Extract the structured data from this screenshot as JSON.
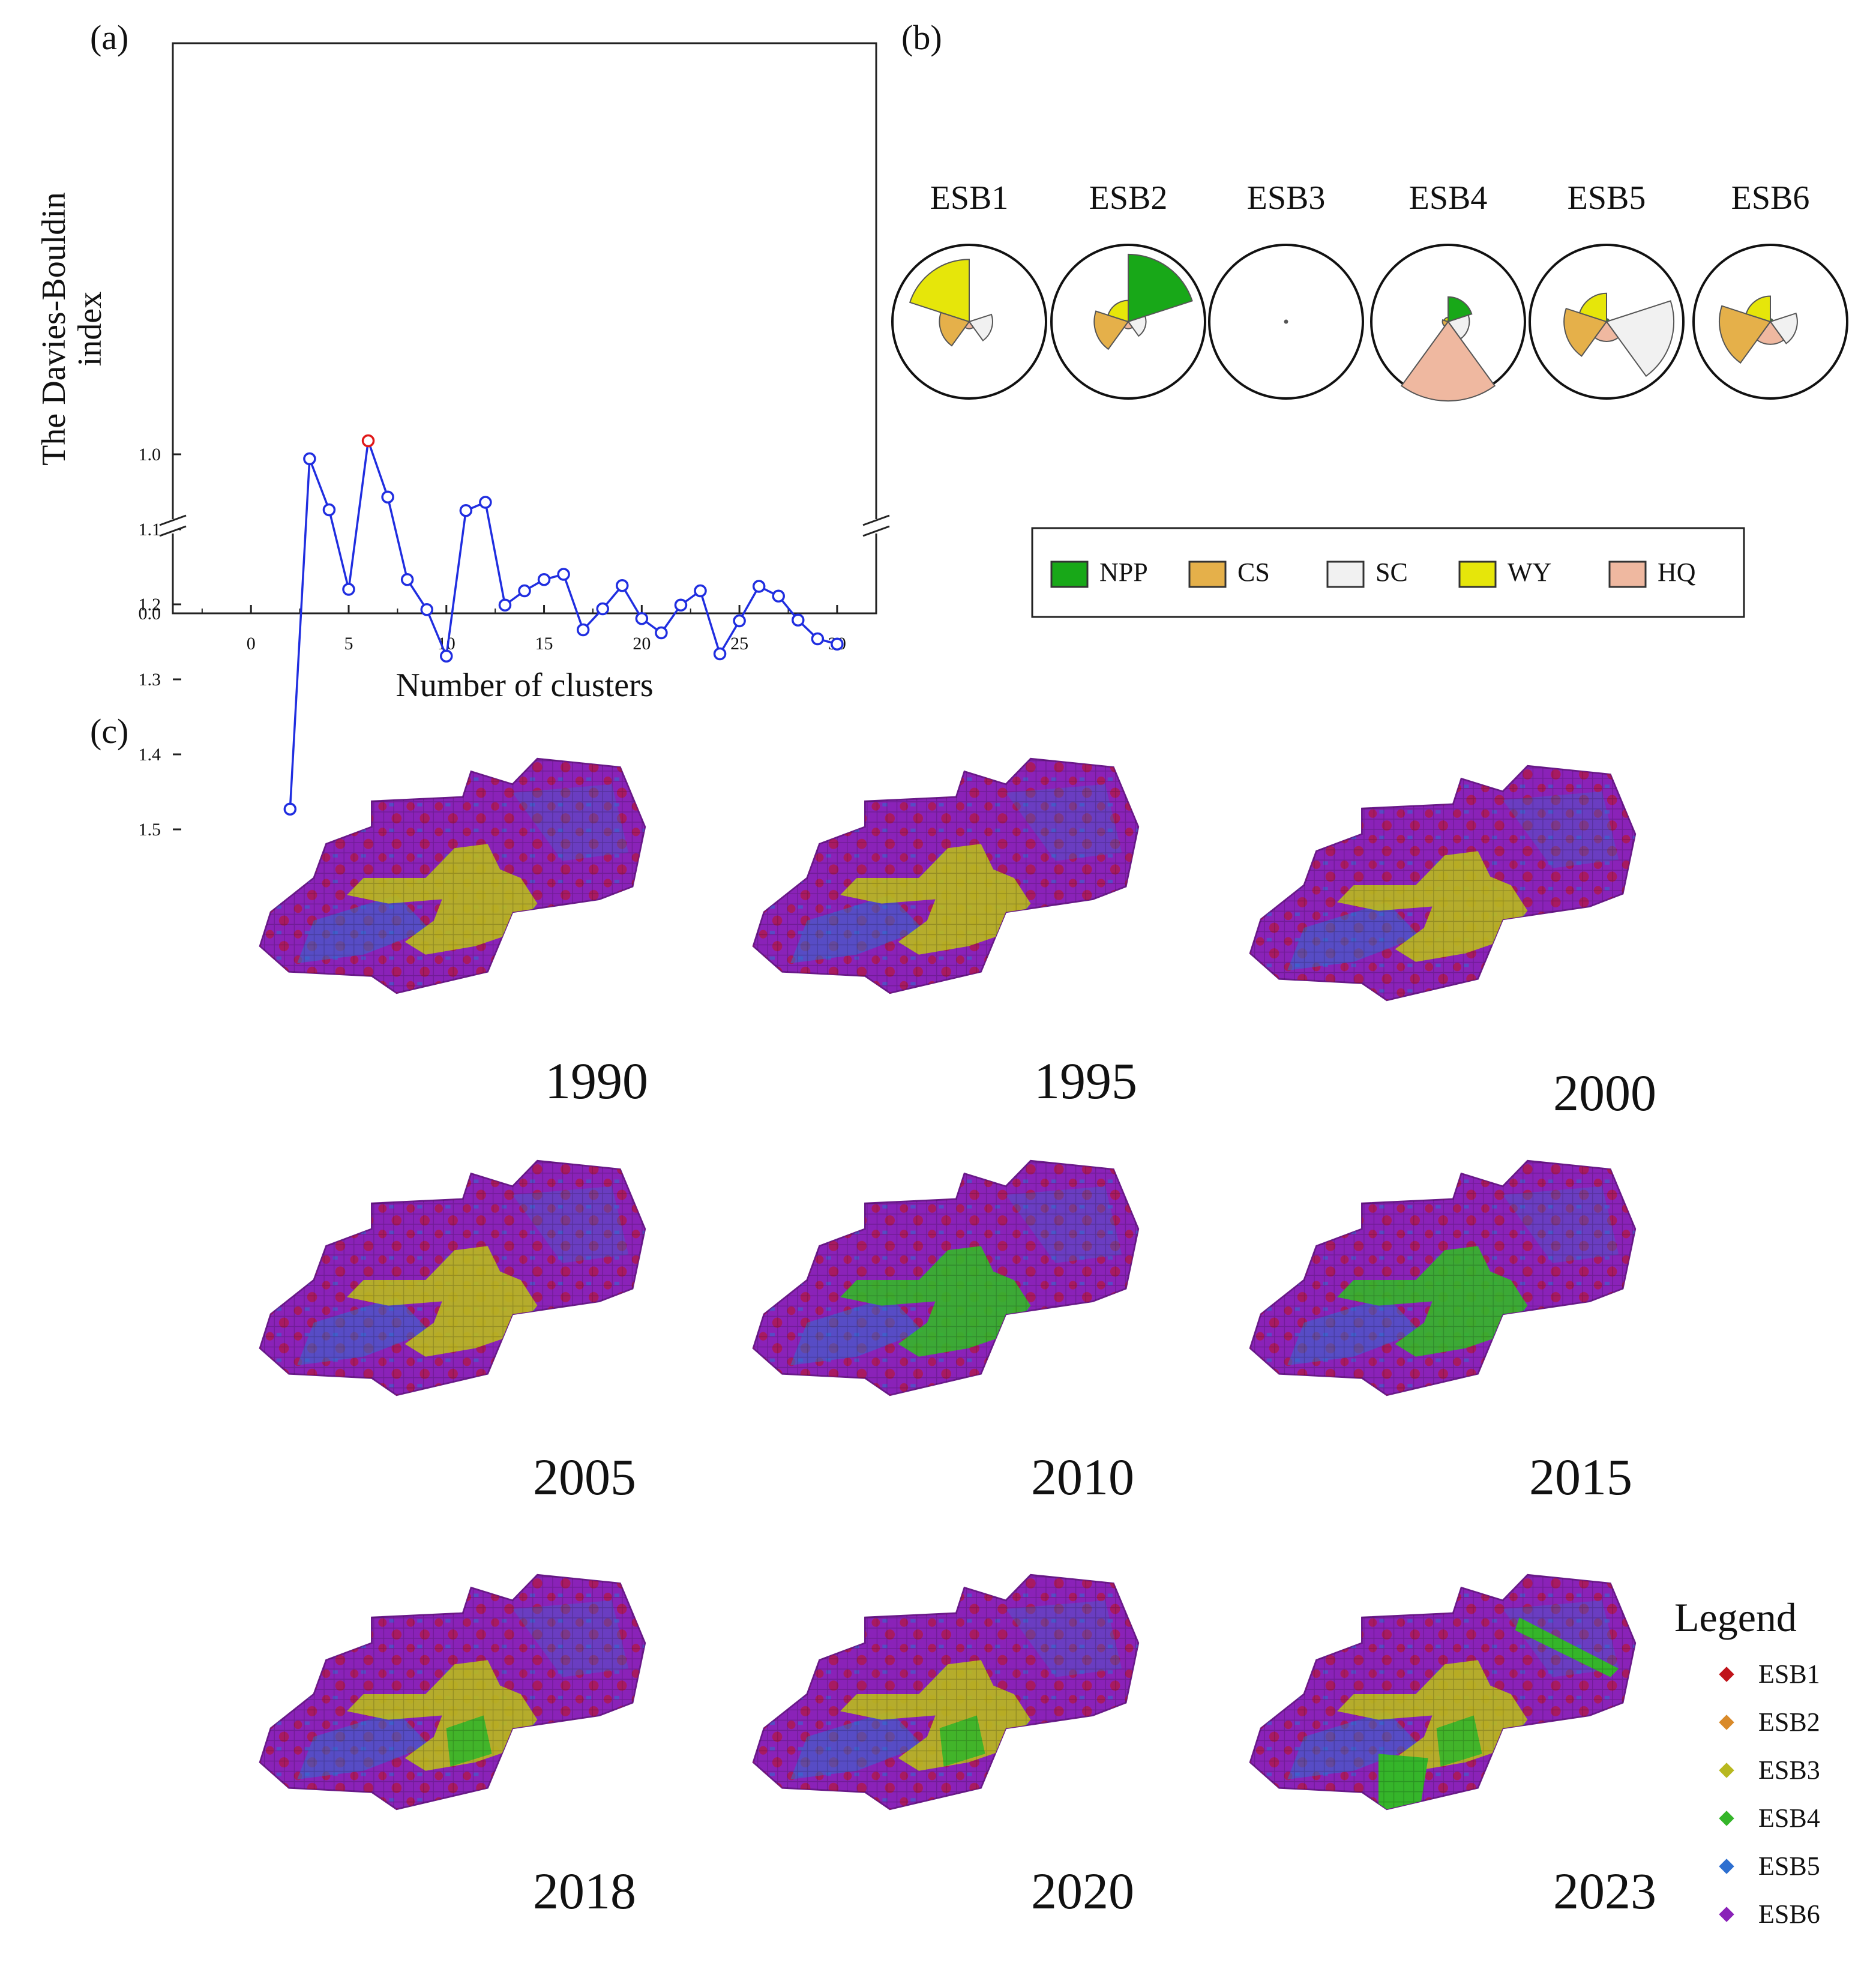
{
  "panels": {
    "a": "(a)",
    "b": "(b)",
    "c": "(c)"
  },
  "colors": {
    "line": "#1f2de0",
    "marker_best": "#e01818",
    "NPP": "#18a818",
    "CS": "#e5b04a",
    "SC": "#f1f1f1",
    "WY": "#e6e60a",
    "HQ": "#efb8a0",
    "ESB1": "#c0141a",
    "ESB2": "#d98a2a",
    "ESB3": "#b8b820",
    "ESB4": "#35b52a",
    "ESB5": "#2d6fd0",
    "ESB6": "#8a22b8"
  },
  "chart_data": [
    {
      "type": "line",
      "title": "",
      "xlabel": "Number of clusters",
      "ylabel": "The Davies-Bouldin index",
      "xlim": [
        -4,
        32
      ],
      "xticks": [
        0,
        5,
        10,
        15,
        20,
        25,
        30
      ],
      "yticks": [
        1.0,
        1.1,
        1.2,
        1.3,
        1.4,
        1.5
      ],
      "ytick_labels": [
        "1.0",
        "1.1",
        "1.2",
        "1.3",
        "1.4",
        "1.5"
      ],
      "y_break_label": "0.0",
      "x": [
        2,
        3,
        4,
        5,
        6,
        7,
        8,
        9,
        10,
        11,
        12,
        13,
        14,
        15,
        16,
        17,
        18,
        19,
        20,
        21,
        22,
        23,
        24,
        25,
        26,
        27,
        28,
        29,
        30
      ],
      "values": [
        1.473,
        1.006,
        1.074,
        1.18,
        0.982,
        1.057,
        1.167,
        1.207,
        1.269,
        1.075,
        1.064,
        1.201,
        1.182,
        1.167,
        1.16,
        1.234,
        1.206,
        1.175,
        1.219,
        1.238,
        1.201,
        1.182,
        1.266,
        1.222,
        1.176,
        1.189,
        1.221,
        1.246,
        1.253
      ],
      "highlight_x": 6
    },
    {
      "type": "rose",
      "groups": [
        "ESB1",
        "ESB2",
        "ESB3",
        "ESB4",
        "ESB5",
        "ESB6"
      ],
      "indicators": [
        "NPP",
        "CS",
        "SC",
        "WY",
        "HQ"
      ],
      "series": [
        {
          "name": "ESB1",
          "values": [
            0.0,
            0.42,
            0.33,
            0.88,
            0.1
          ]
        },
        {
          "name": "ESB2",
          "values": [
            0.95,
            0.48,
            0.25,
            0.3,
            0.1
          ]
        },
        {
          "name": "ESB3",
          "values": [
            0.02,
            0.02,
            0.02,
            0.02,
            0.02
          ]
        },
        {
          "name": "ESB4",
          "values": [
            0.35,
            0.08,
            0.3,
            0.06,
            1.12
          ]
        },
        {
          "name": "ESB5",
          "values": [
            0.04,
            0.6,
            0.95,
            0.4,
            0.28
          ]
        },
        {
          "name": "ESB6",
          "values": [
            0.04,
            0.72,
            0.38,
            0.36,
            0.32
          ]
        }
      ],
      "legend": [
        "NPP",
        "CS",
        "SC",
        "WY",
        "HQ"
      ]
    },
    {
      "type": "map",
      "years": [
        "1990",
        "1995",
        "2000",
        "2005",
        "2010",
        "2015",
        "2018",
        "2020",
        "2023"
      ],
      "legend_title": "Legend",
      "legend": [
        "ESB1",
        "ESB2",
        "ESB3",
        "ESB4",
        "ESB5",
        "ESB6"
      ]
    }
  ]
}
